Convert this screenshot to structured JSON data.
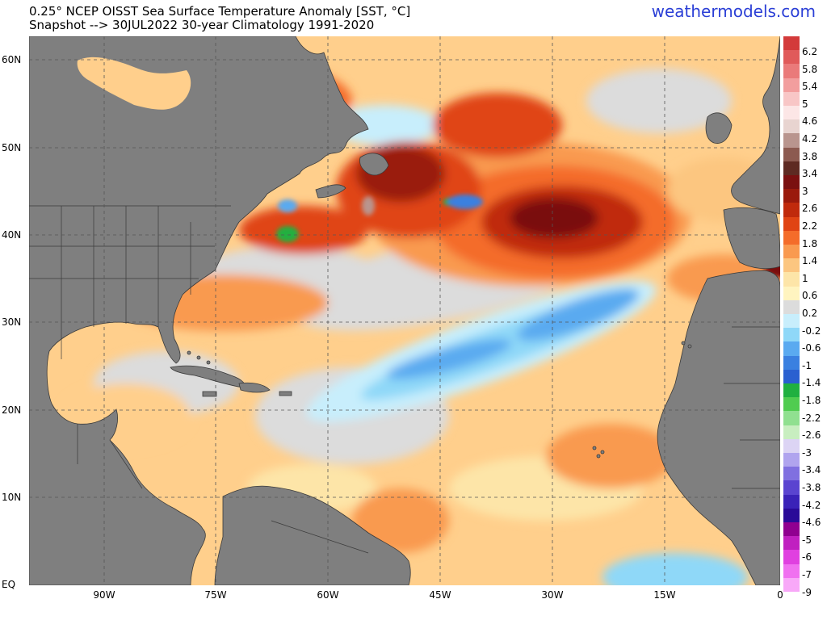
{
  "header": {
    "title_line1": "0.25° NCEP OISST Sea Surface Temperature Anomaly [SST, °C]",
    "title_line2": "Snapshot --> 30JUL2022   30-year Climatology 1991-2020",
    "brand": "weathermodels.com"
  },
  "map": {
    "region": "North Atlantic",
    "lat_labels": [
      "60N",
      "50N",
      "40N",
      "30N",
      "20N",
      "10N",
      "EQ"
    ],
    "lon_labels": [
      "90W",
      "75W",
      "60W",
      "45W",
      "30W",
      "15W",
      "0"
    ],
    "land_color": "#7f7f7f",
    "border_color": "#3a3a3a",
    "grid_style": "dashed"
  },
  "colorbar": {
    "labels": [
      "6.2",
      "5.8",
      "5.4",
      "5",
      "4.6",
      "4.2",
      "3.8",
      "3.4",
      "3",
      "2.6",
      "2.2",
      "1.8",
      "1.4",
      "1",
      "0.6",
      "0.2",
      "-0.2",
      "-0.6",
      "-1",
      "-1.4",
      "-1.8",
      "-2.2",
      "-2.6",
      "-3",
      "-3.4",
      "-3.8",
      "-4.2",
      "-4.6",
      "-5",
      "-6",
      "-7",
      "-9"
    ],
    "colors": [
      "#d33a3a",
      "#e05a5a",
      "#ea7a7a",
      "#f29e9e",
      "#f8c6c6",
      "#fce6e6",
      "#e8d4d0",
      "#b9958e",
      "#8c5a50",
      "#5e2a22",
      "#7a1010",
      "#9a1a0c",
      "#c02a0c",
      "#e04414",
      "#f46c2a",
      "#f99a50",
      "#fcc680",
      "#fde5a8",
      "#fff4c0",
      "#dcdcdc",
      "#c8eefc",
      "#8fd8f8",
      "#5aaaf0",
      "#3a80e0",
      "#2a60d0",
      "#20b040",
      "#50cc50",
      "#90e090",
      "#c8eec0",
      "#dcd4f4",
      "#b0a4ee",
      "#8070e0",
      "#5a44d0",
      "#3a22b8",
      "#2a0a98",
      "#900090",
      "#c020c0",
      "#e040e0",
      "#f070f0",
      "#f8a8f8"
    ]
  }
}
